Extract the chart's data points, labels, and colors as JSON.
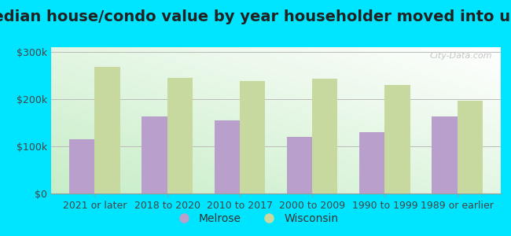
{
  "title": "Median house/condo value by year householder moved into unit",
  "categories": [
    "2021 or later",
    "2018 to 2020",
    "2010 to 2017",
    "2000 to 2009",
    "1990 to 1999",
    "1989 or earlier"
  ],
  "melrose_values": [
    115000,
    163000,
    155000,
    120000,
    130000,
    163000
  ],
  "wisconsin_values": [
    268000,
    245000,
    238000,
    244000,
    230000,
    197000
  ],
  "melrose_color": "#b99fcc",
  "wisconsin_color": "#c8d9a0",
  "background_outer": "#00e5ff",
  "background_inner_left": "#c8eec8",
  "background_inner_right": "#f8fff8",
  "yticks": [
    0,
    100000,
    200000,
    300000
  ],
  "ylabels": [
    "$0",
    "$100k",
    "$200k",
    "$300k"
  ],
  "ylim": [
    0,
    310000
  ],
  "bar_width": 0.35,
  "legend_melrose": "Melrose",
  "legend_wisconsin": "Wisconsin",
  "title_fontsize": 14,
  "tick_fontsize": 9,
  "legend_fontsize": 10,
  "watermark_text": "City-Data.com"
}
